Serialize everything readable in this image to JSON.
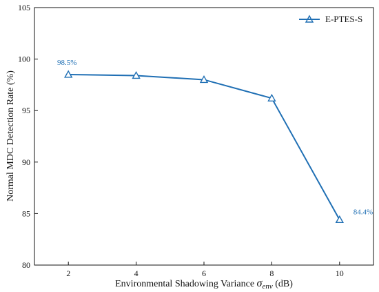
{
  "chart_data": {
    "type": "line",
    "title": "",
    "xlabel_prefix": "Environmental Shadowing Variance ",
    "xlabel_symbol": "σ",
    "xlabel_subscript": "env",
    "xlabel_suffix": " (dB)",
    "ylabel": "Normal MDC Detection Rate (%)",
    "xlim": [
      1,
      11
    ],
    "ylim": [
      80,
      105
    ],
    "xticks": [
      2,
      4,
      6,
      8,
      10
    ],
    "yticks": [
      80,
      85,
      90,
      95,
      100,
      105
    ],
    "grid": false,
    "legend_position": "top-right",
    "series": [
      {
        "name": "E-PTES-S",
        "color": "#1f6fb4",
        "marker": "triangle-open",
        "x": [
          2,
          4,
          6,
          8,
          10
        ],
        "y": [
          98.5,
          98.4,
          98.0,
          96.2,
          84.4
        ]
      }
    ],
    "annotations": [
      {
        "text": "98.5%",
        "x": 2,
        "y": 98.5,
        "placement": "above-left"
      },
      {
        "text": "84.4%",
        "x": 10,
        "y": 84.4,
        "placement": "above-right"
      }
    ]
  }
}
